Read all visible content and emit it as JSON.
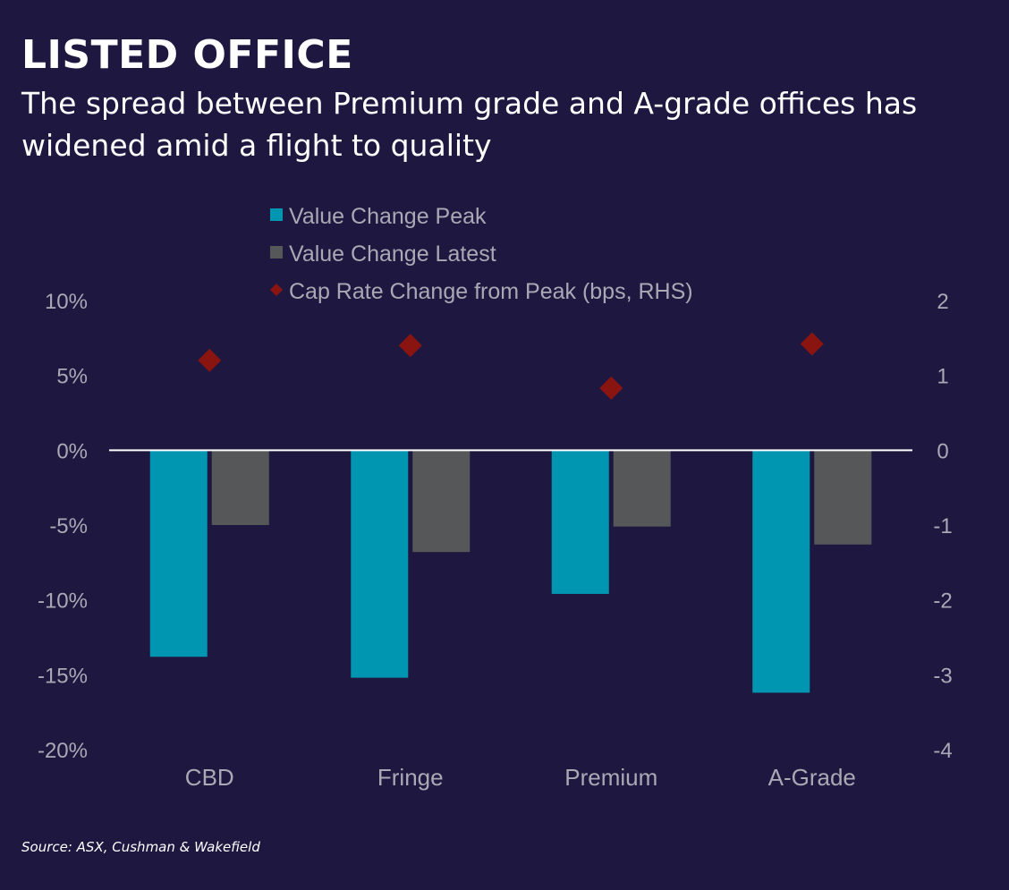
{
  "header": {
    "title": "LISTED OFFICE",
    "subtitle": "The spread between Premium grade and A-grade offices has widened amid a flight to quality"
  },
  "footer": {
    "source": "Source: ASX, Cushman & Wakefield"
  },
  "colors": {
    "background": "#1e1840",
    "peak": "#0095b0",
    "latest": "#555758",
    "cap_rate": "#8a1410",
    "axis_text": "#a9a8b4"
  },
  "chart_data": {
    "type": "bar",
    "categories": [
      "CBD",
      "Fringe",
      "Premium",
      "A-Grade"
    ],
    "series": [
      {
        "name": "Value Change Peak",
        "type": "bar",
        "axis": "left",
        "values": [
          -13.8,
          -15.2,
          -9.6,
          -16.2
        ]
      },
      {
        "name": "Value Change Latest",
        "type": "bar",
        "axis": "left",
        "values": [
          -5.0,
          -6.8,
          -5.1,
          -6.3
        ]
      },
      {
        "name": "Cap Rate Change from Peak (bps, RHS)",
        "type": "scatter",
        "marker": "diamond",
        "axis": "right",
        "values": [
          1.2,
          1.4,
          0.83,
          1.42
        ]
      }
    ],
    "y_left": {
      "lim": [
        -20,
        10
      ],
      "ticks": [
        10,
        5,
        0,
        -5,
        -10,
        -15,
        -20
      ],
      "tick_labels": [
        "10%",
        "5%",
        "0%",
        "-5%",
        "-10%",
        "-15%",
        "-20%"
      ]
    },
    "y_right": {
      "lim": [
        -4,
        2
      ],
      "ticks": [
        2,
        1,
        0,
        -1,
        -2,
        -3,
        -4
      ],
      "tick_labels": [
        "2",
        "1",
        "0",
        "-1",
        "-2",
        "-3",
        "-4"
      ]
    },
    "grid": false,
    "legend_position": "top-center"
  }
}
